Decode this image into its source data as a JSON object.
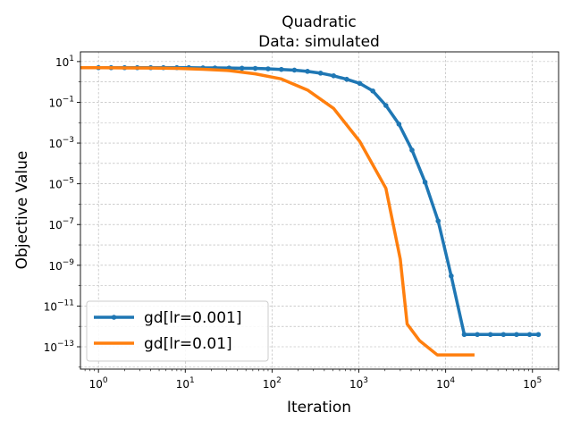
{
  "chart_data": {
    "type": "line",
    "title": "Quadratic",
    "subtitle": "Data: simulated",
    "xlabel": "Iteration",
    "ylabel": "Objective Value",
    "xscale": "log",
    "yscale": "log",
    "xlim": [
      0.62,
      200000
    ],
    "ylim": [
      8e-15,
      30
    ],
    "grid": true,
    "legend_position": "lower-left",
    "x_ticks": [
      {
        "value": 1,
        "base": "10",
        "exp": "0"
      },
      {
        "value": 10,
        "base": "10",
        "exp": "1"
      },
      {
        "value": 100,
        "base": "10",
        "exp": "2"
      },
      {
        "value": 1000,
        "base": "10",
        "exp": "3"
      },
      {
        "value": 10000,
        "base": "10",
        "exp": "4"
      },
      {
        "value": 100000,
        "base": "10",
        "exp": "5"
      }
    ],
    "y_ticks": [
      {
        "value": 10,
        "base": "10",
        "exp": "1"
      },
      {
        "value": 0.1,
        "base": "10",
        "exp": "−1"
      },
      {
        "value": 0.001,
        "base": "10",
        "exp": "−3"
      },
      {
        "value": 1e-05,
        "base": "10",
        "exp": "−5"
      },
      {
        "value": 1e-07,
        "base": "10",
        "exp": "−7"
      },
      {
        "value": 1e-09,
        "base": "10",
        "exp": "−9"
      },
      {
        "value": 1e-11,
        "base": "10",
        "exp": "−11"
      },
      {
        "value": 1e-13,
        "base": "10",
        "exp": "−13"
      }
    ],
    "series": [
      {
        "name": "gd[lr=0.001]",
        "color": "#1f77b4",
        "markers": true,
        "x": [
          1,
          1.4,
          2,
          2.8,
          4,
          5.6,
          8,
          11,
          16,
          22,
          32,
          45,
          64,
          90,
          128,
          181,
          256,
          362,
          512,
          724,
          1024,
          1448,
          2048,
          2896,
          4096,
          5793,
          8192,
          11585,
          16384,
          23170,
          32768,
          46341,
          65536,
          92682,
          117000
        ],
        "y": [
          5,
          5,
          5,
          5,
          5,
          5,
          5,
          5,
          4.9,
          4.85,
          4.8,
          4.7,
          4.6,
          4.4,
          4.1,
          3.8,
          3.3,
          2.7,
          2.0,
          1.35,
          0.85,
          0.36,
          0.07,
          0.0085,
          0.00045,
          1.2e-05,
          1.5e-07,
          3e-10,
          4e-13,
          4e-13,
          4e-13,
          4e-13,
          4e-13,
          4e-13,
          4e-13
        ]
      },
      {
        "name": "gd[lr=0.01]",
        "color": "#ff7f0e",
        "markers": false,
        "x": [
          0.62,
          1,
          2,
          4,
          8,
          16,
          32,
          64,
          128,
          256,
          512,
          1024,
          2048,
          3000,
          3600,
          5000,
          8000,
          12000,
          16000,
          21500
        ],
        "y": [
          5,
          5,
          4.9,
          4.8,
          4.6,
          4.2,
          3.6,
          2.5,
          1.4,
          0.4,
          0.05,
          0.0012,
          6e-06,
          2e-09,
          1.3e-12,
          2e-13,
          4e-14,
          4e-14,
          4e-14,
          4e-14
        ]
      }
    ]
  }
}
